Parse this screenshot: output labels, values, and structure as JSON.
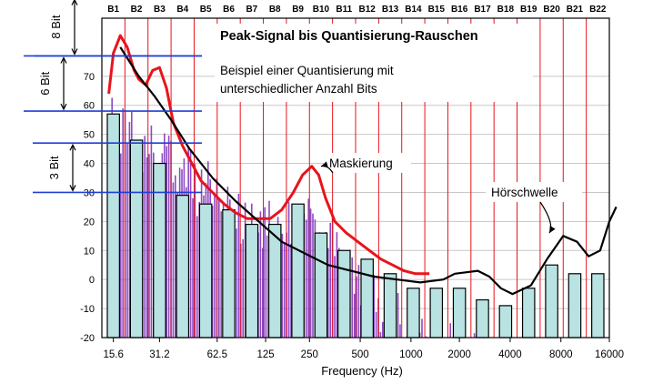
{
  "chart_data": {
    "type": "bar",
    "title": "Peak-Signal bis Quantisierung-Rauschen",
    "subtitle_lines": [
      "Beispiel einer Quantisierung mit",
      "unterschiedlicher Anzahl Bits"
    ],
    "xlabel": "Frequency (Hz)",
    "ylabel": "",
    "ylim": [
      -20,
      90
    ],
    "yticks": [
      -20,
      -10,
      0,
      10,
      20,
      30,
      40,
      50,
      60,
      70
    ],
    "x_tick_labels": [
      "15.6",
      "31.2",
      "62.5",
      "125",
      "250",
      "500",
      "1000",
      "2000",
      "4000",
      "8000",
      "16000"
    ],
    "bands": [
      "B1",
      "B2",
      "B3",
      "B4",
      "B5",
      "B6",
      "B7",
      "B8",
      "B9",
      "B10",
      "B11",
      "B12",
      "B13",
      "B14",
      "B15",
      "B16",
      "B17",
      "B18",
      "B19",
      "B20",
      "B21",
      "B22"
    ],
    "bar_values": [
      57,
      48,
      40,
      29,
      26,
      24,
      19,
      19,
      26,
      16,
      10,
      7,
      2,
      -3,
      -3,
      -3,
      -7,
      -9,
      -3,
      5,
      2,
      2
    ],
    "series": [
      {
        "name": "Maskierung",
        "color": "#e8141b",
        "points": [
          [
            0.3,
            64
          ],
          [
            0.5,
            78
          ],
          [
            0.8,
            84
          ],
          [
            1.1,
            80
          ],
          [
            1.4,
            72
          ],
          [
            1.6,
            69
          ],
          [
            1.9,
            67
          ],
          [
            2.2,
            72
          ],
          [
            2.5,
            73
          ],
          [
            2.8,
            66
          ],
          [
            3.1,
            54
          ],
          [
            3.5,
            46
          ],
          [
            3.9,
            40
          ],
          [
            4.3,
            34
          ],
          [
            4.8,
            30
          ],
          [
            5.3,
            26
          ],
          [
            5.8,
            23
          ],
          [
            6.3,
            21
          ],
          [
            6.8,
            21
          ],
          [
            7.3,
            21
          ],
          [
            7.8,
            24
          ],
          [
            8.3,
            30
          ],
          [
            8.7,
            36
          ],
          [
            9.1,
            39
          ],
          [
            9.4,
            36
          ],
          [
            9.7,
            28
          ],
          [
            10.1,
            20
          ],
          [
            10.6,
            16
          ],
          [
            11.1,
            13
          ],
          [
            11.6,
            10
          ],
          [
            12.1,
            7
          ],
          [
            12.6,
            5
          ],
          [
            13.1,
            3
          ],
          [
            13.6,
            2
          ],
          [
            14.2,
            2
          ]
        ]
      },
      {
        "name": "Hörschwelle",
        "color": "#000000",
        "points": [
          [
            0.8,
            80
          ],
          [
            1.6,
            70
          ],
          [
            2.3,
            63
          ],
          [
            3.0,
            55
          ],
          [
            3.8,
            45
          ],
          [
            4.8,
            35
          ],
          [
            5.8,
            27
          ],
          [
            6.8,
            20
          ],
          [
            7.8,
            13
          ],
          [
            8.8,
            9
          ],
          [
            9.8,
            5
          ],
          [
            10.8,
            3
          ],
          [
            11.8,
            1
          ],
          [
            12.8,
            0
          ],
          [
            13.8,
            -1
          ],
          [
            14.8,
            0
          ],
          [
            15.3,
            2
          ],
          [
            16.3,
            3
          ],
          [
            16.8,
            1
          ],
          [
            17.3,
            -3
          ],
          [
            17.8,
            -5
          ],
          [
            18.6,
            -2
          ],
          [
            19.3,
            7
          ],
          [
            20.0,
            15
          ],
          [
            20.6,
            13
          ],
          [
            21.1,
            8
          ],
          [
            21.6,
            10
          ],
          [
            22.0,
            20
          ],
          [
            22.3,
            25
          ]
        ]
      }
    ],
    "annotations": [
      {
        "text": "Maskierung",
        "target_band": 9.5,
        "target_y": 39
      },
      {
        "text": "Hörschwelle",
        "target_band": 19.4,
        "target_y": 16
      }
    ],
    "bit_brackets": [
      {
        "label": "8 Bit",
        "y_top": 97,
        "y_bottom": 77
      },
      {
        "label": "6 Bit",
        "y_top": 77,
        "y_bottom": 58
      },
      {
        "label": "3 Bit",
        "y_top": 47,
        "y_bottom": 30
      }
    ],
    "colors": {
      "bar_fill": "#b9e2e2",
      "bar_stroke": "#000000",
      "spectrum": "#7a2bb8",
      "band_line": "#e8141b",
      "bracket": "#1f3fd6"
    }
  }
}
